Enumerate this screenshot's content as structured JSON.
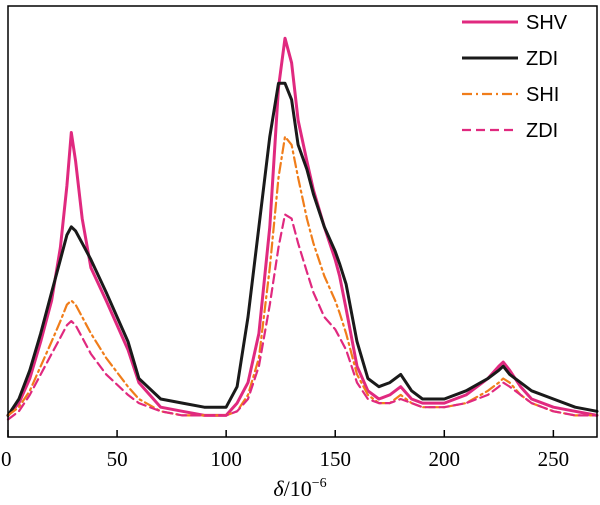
{
  "chart_data": {
    "type": "line",
    "xlabel_italic": "δ",
    "xlabel_rest": "/10",
    "xlabel_sup": "−6",
    "xlim": [
      0,
      270
    ],
    "xticks": [
      0,
      50,
      100,
      150,
      200,
      250
    ],
    "legend_position": "top-right",
    "y_axis_visible": false,
    "grid": false,
    "series": [
      {
        "name": "SHV",
        "color": "#e0297f",
        "dash": "solid",
        "x": [
          0,
          5,
          10,
          15,
          20,
          24,
          27,
          29,
          31,
          34,
          38,
          45,
          55,
          60,
          70,
          80,
          90,
          100,
          105,
          110,
          115,
          120,
          124,
          127,
          130,
          133,
          137,
          140,
          145,
          150,
          152,
          155,
          160,
          165,
          170,
          175,
          180,
          185,
          190,
          200,
          210,
          220,
          225,
          227,
          230,
          235,
          240,
          250,
          260,
          270
        ],
        "y": [
          0.06,
          0.09,
          0.15,
          0.24,
          0.34,
          0.47,
          0.62,
          0.75,
          0.68,
          0.54,
          0.42,
          0.34,
          0.22,
          0.14,
          0.08,
          0.07,
          0.06,
          0.06,
          0.09,
          0.14,
          0.26,
          0.52,
          0.86,
          0.98,
          0.92,
          0.78,
          0.68,
          0.61,
          0.52,
          0.44,
          0.4,
          0.32,
          0.18,
          0.12,
          0.1,
          0.11,
          0.13,
          0.1,
          0.09,
          0.09,
          0.11,
          0.15,
          0.18,
          0.19,
          0.17,
          0.13,
          0.1,
          0.08,
          0.07,
          0.06
        ]
      },
      {
        "name": "ZDI",
        "color": "#1a1a1a",
        "dash": "solid",
        "x": [
          0,
          5,
          10,
          15,
          20,
          24,
          27,
          29,
          31,
          34,
          38,
          45,
          55,
          60,
          70,
          80,
          90,
          100,
          105,
          110,
          115,
          120,
          124,
          127,
          130,
          133,
          137,
          140,
          145,
          150,
          152,
          155,
          160,
          165,
          170,
          175,
          180,
          185,
          190,
          200,
          210,
          220,
          225,
          227,
          230,
          235,
          240,
          250,
          260,
          270
        ],
        "y": [
          0.06,
          0.1,
          0.17,
          0.26,
          0.36,
          0.44,
          0.5,
          0.52,
          0.51,
          0.48,
          0.44,
          0.36,
          0.24,
          0.15,
          0.1,
          0.09,
          0.08,
          0.08,
          0.13,
          0.3,
          0.52,
          0.74,
          0.87,
          0.87,
          0.83,
          0.72,
          0.66,
          0.6,
          0.52,
          0.46,
          0.43,
          0.38,
          0.24,
          0.15,
          0.13,
          0.14,
          0.16,
          0.12,
          0.1,
          0.1,
          0.12,
          0.15,
          0.17,
          0.18,
          0.16,
          0.14,
          0.12,
          0.1,
          0.08,
          0.07
        ]
      },
      {
        "name": "SHI",
        "color": "#f07d1a",
        "dash": "dashdot",
        "x": [
          0,
          5,
          10,
          15,
          20,
          24,
          27,
          29,
          31,
          34,
          38,
          45,
          55,
          60,
          70,
          80,
          90,
          100,
          105,
          110,
          115,
          120,
          124,
          127,
          130,
          133,
          137,
          140,
          145,
          150,
          152,
          155,
          160,
          165,
          170,
          175,
          180,
          185,
          190,
          200,
          210,
          220,
          225,
          227,
          230,
          235,
          240,
          250,
          260,
          270
        ],
        "y": [
          0.06,
          0.08,
          0.12,
          0.18,
          0.24,
          0.29,
          0.33,
          0.34,
          0.33,
          0.3,
          0.26,
          0.2,
          0.13,
          0.1,
          0.07,
          0.06,
          0.06,
          0.06,
          0.07,
          0.11,
          0.2,
          0.42,
          0.64,
          0.74,
          0.72,
          0.64,
          0.54,
          0.48,
          0.4,
          0.34,
          0.31,
          0.26,
          0.16,
          0.11,
          0.09,
          0.09,
          0.11,
          0.09,
          0.08,
          0.08,
          0.09,
          0.12,
          0.14,
          0.15,
          0.14,
          0.11,
          0.09,
          0.07,
          0.06,
          0.06
        ]
      },
      {
        "name": "ZDI",
        "color": "#e0297f",
        "dash": "dashed",
        "x": [
          0,
          5,
          10,
          15,
          20,
          24,
          27,
          29,
          31,
          34,
          38,
          45,
          55,
          60,
          70,
          80,
          90,
          100,
          105,
          110,
          115,
          120,
          124,
          127,
          130,
          133,
          137,
          140,
          145,
          150,
          152,
          155,
          160,
          165,
          170,
          175,
          180,
          185,
          190,
          200,
          210,
          220,
          225,
          227,
          230,
          235,
          240,
          250,
          260,
          270
        ],
        "y": [
          0.05,
          0.07,
          0.11,
          0.16,
          0.21,
          0.25,
          0.28,
          0.29,
          0.28,
          0.25,
          0.21,
          0.16,
          0.11,
          0.09,
          0.07,
          0.06,
          0.06,
          0.06,
          0.07,
          0.1,
          0.18,
          0.33,
          0.47,
          0.55,
          0.54,
          0.48,
          0.41,
          0.36,
          0.3,
          0.27,
          0.25,
          0.22,
          0.14,
          0.1,
          0.09,
          0.09,
          0.1,
          0.09,
          0.08,
          0.08,
          0.09,
          0.11,
          0.13,
          0.14,
          0.13,
          0.11,
          0.09,
          0.07,
          0.06,
          0.06
        ]
      }
    ]
  }
}
